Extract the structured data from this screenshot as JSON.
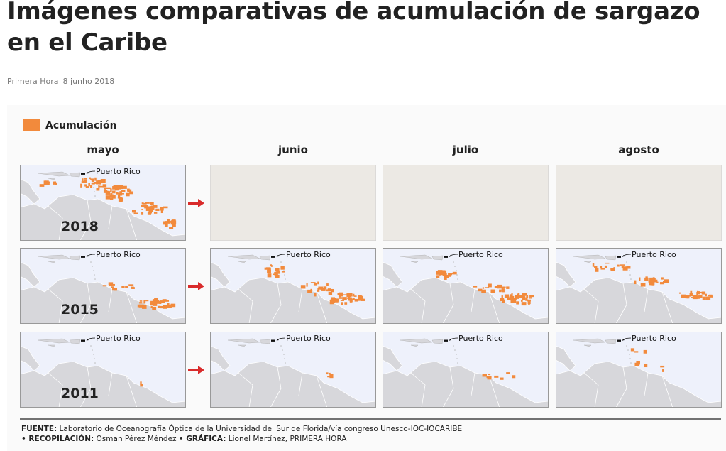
{
  "header": {
    "title": "Imágenes comparativas de acumulación de sargazo en el Caribe",
    "source": "Primera Hora",
    "date": "8 junho 2018"
  },
  "infographic": {
    "legend": "Acumulación",
    "months": [
      "mayo",
      "junio",
      "julio",
      "agosto"
    ],
    "years": [
      "2018",
      "2015",
      "2011"
    ],
    "map_label": "Puerto Rico",
    "footer": {
      "source_label": "FUENTE:",
      "source": "Laboratorio de Oceanografía Óptica de la Universidad del Sur de Florida/vía congreso Unesco-IOC-IOCARIBE",
      "compilation_label": "• RECOPILACIÓN:",
      "compilation": "Osman Pérez Méndez",
      "graphic_label": "• GRÁFICA:",
      "graphic": "Lionel Martínez, PRIMERA HORA"
    }
  }
}
